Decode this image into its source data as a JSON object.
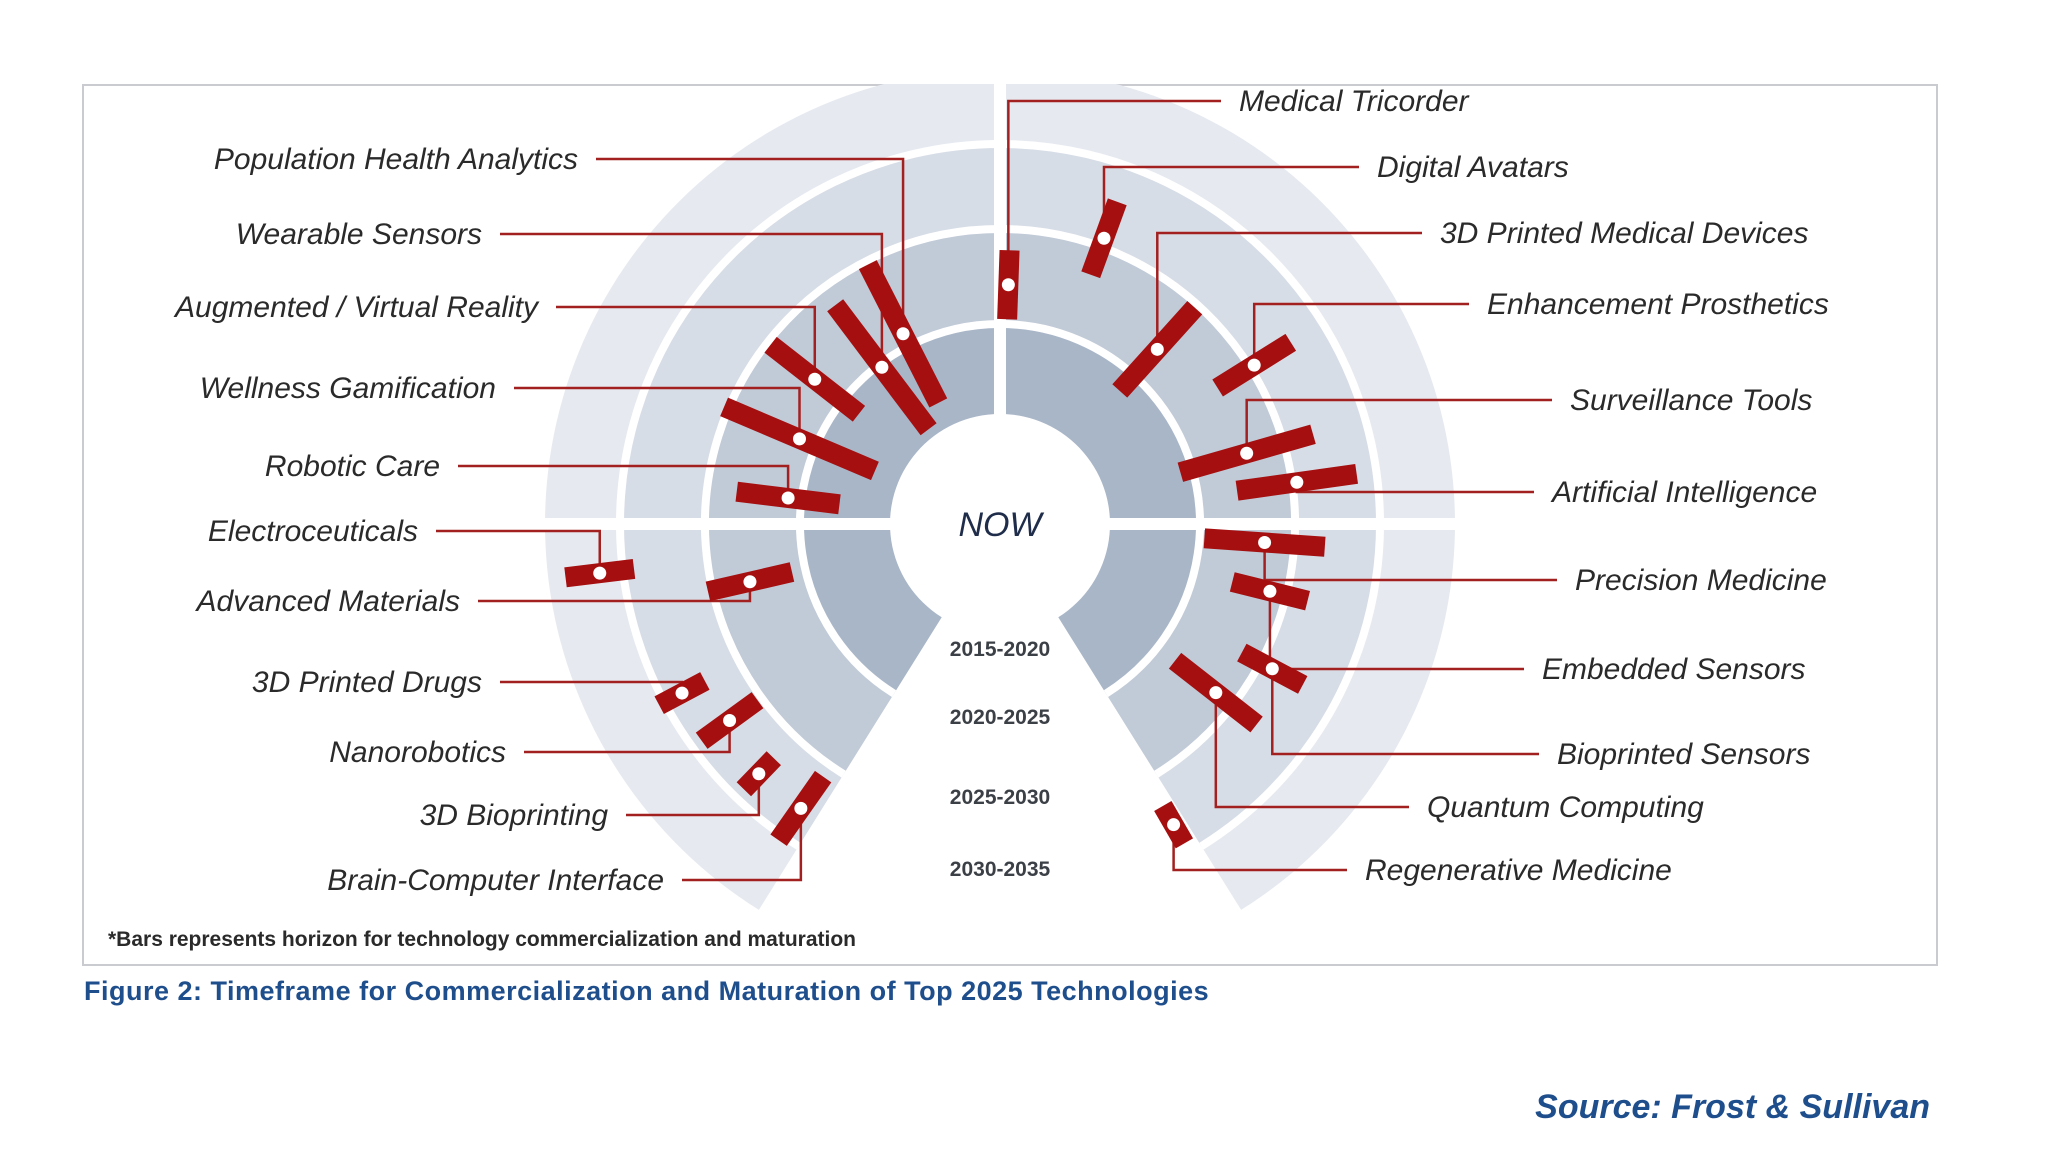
{
  "chart_data": {
    "type": "radial-timeline",
    "title": "Timeframe for Commercialization and Maturation of Top 2025 Technologies",
    "center_label": "NOW",
    "rings": [
      "2015-2020",
      "2020-2025",
      "2025-2030",
      "2030-2035"
    ],
    "footnote": "*Bars represents horizon for technology commercialization and maturation",
    "technologies": [
      {
        "name": "Population Health Analytics",
        "start_year": 2016.5,
        "end_year": 2025.5
      },
      {
        "name": "Wearable Sensors",
        "start_year": 2015.5,
        "end_year": 2024.5
      },
      {
        "name": "Augmented / Virtual Reality",
        "start_year": 2019,
        "end_year": 2025.5
      },
      {
        "name": "Wellness Gamification",
        "start_year": 2016.5,
        "end_year": 2026
      },
      {
        "name": "Robotic Care",
        "start_year": 2018,
        "end_year": 2024
      },
      {
        "name": "Electroceuticals",
        "start_year": 2030,
        "end_year": 2034
      },
      {
        "name": "Advanced Materials",
        "start_year": 2021,
        "end_year": 2026
      },
      {
        "name": "3D Printed Drugs",
        "start_year": 2028,
        "end_year": 2031
      },
      {
        "name": "Nanorobotics",
        "start_year": 2026,
        "end_year": 2030
      },
      {
        "name": "3D Bioprinting",
        "start_year": 2027.5,
        "end_year": 2030
      },
      {
        "name": "Brain-Computer Interface",
        "start_year": 2026.5,
        "end_year": 2031
      },
      {
        "name": "Medical Tricorder",
        "start_year": 2020.5,
        "end_year": 2024.5
      },
      {
        "name": "Digital Avatars",
        "start_year": 2024,
        "end_year": 2028.5
      },
      {
        "name": "3D Printed Medical Devices",
        "start_year": 2019,
        "end_year": 2025.5
      },
      {
        "name": "Enhancement Prosthetics",
        "start_year": 2023.5,
        "end_year": 2028.5
      },
      {
        "name": "Surveillance Tools",
        "start_year": 2019.5,
        "end_year": 2027.5
      },
      {
        "name": "Artificial Intelligence",
        "start_year": 2022.5,
        "end_year": 2029.5
      },
      {
        "name": "Precision Medicine",
        "start_year": 2020.5,
        "end_year": 2027.5
      },
      {
        "name": "Embedded Sensors",
        "start_year": 2022.5,
        "end_year": 2027
      },
      {
        "name": "Bioprinted Sensors",
        "start_year": 2024.5,
        "end_year": 2028.5
      },
      {
        "name": "Quantum Computing",
        "start_year": 2021.5,
        "end_year": 2027.5
      },
      {
        "name": "Regenerative Medicine",
        "start_year": 2027.5,
        "end_year": 2030
      }
    ]
  },
  "caption": "Figure 2: Timeframe for Commercialization and Maturation of Top 2025 Technologies",
  "source": "Source: Frost & Sullivan",
  "colors": {
    "bar": "#a50f0f",
    "leader": "#a32020",
    "ring_inner": "#a9b6c8",
    "ring_2": "#c1cad7",
    "ring_3": "#d7dde6",
    "ring_outer": "#e6eaf0",
    "caption": "#1f4e8c"
  }
}
